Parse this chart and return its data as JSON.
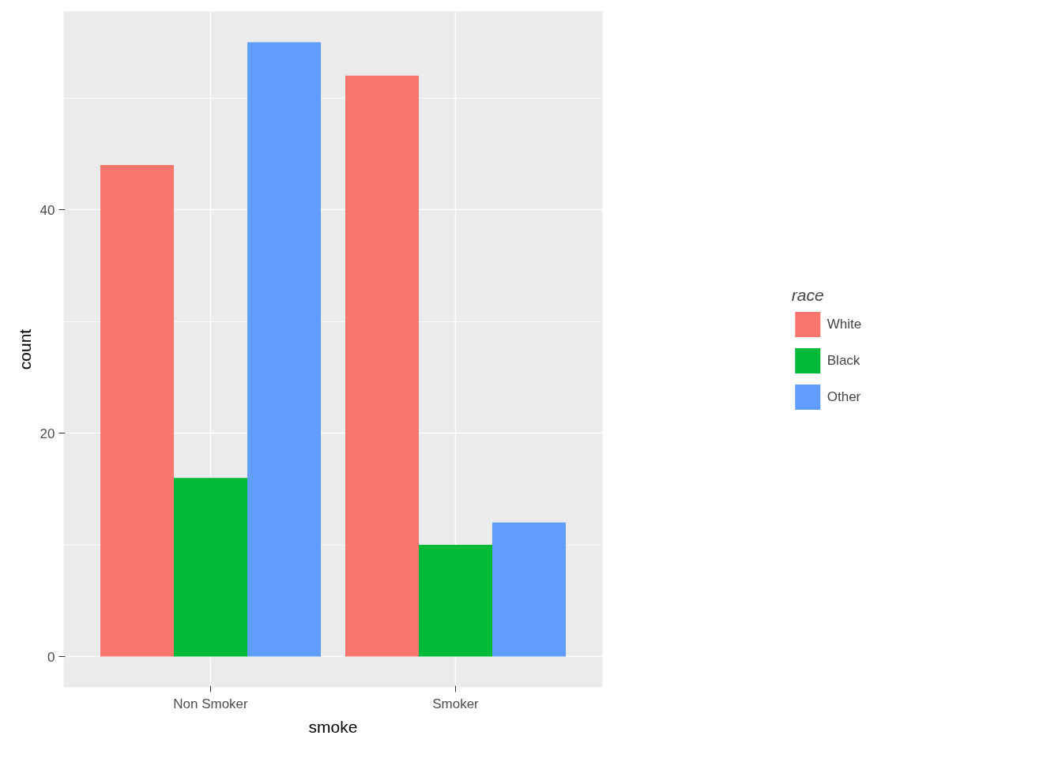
{
  "chart_data": {
    "type": "bar",
    "xlabel": "smoke",
    "ylabel": "count",
    "legend_title": "race",
    "categories": [
      "Non Smoker",
      "Smoker"
    ],
    "series": [
      {
        "name": "White",
        "color": "#f8766d",
        "values": [
          44,
          52
        ]
      },
      {
        "name": "Black",
        "color": "#00ba38",
        "values": [
          16,
          10
        ]
      },
      {
        "name": "Other",
        "color": "#619cff",
        "values": [
          55,
          12
        ]
      }
    ],
    "ylim": [
      -2.75,
      57.75
    ],
    "yticks": [
      0,
      20,
      40
    ],
    "grid": true,
    "legend": "right"
  }
}
